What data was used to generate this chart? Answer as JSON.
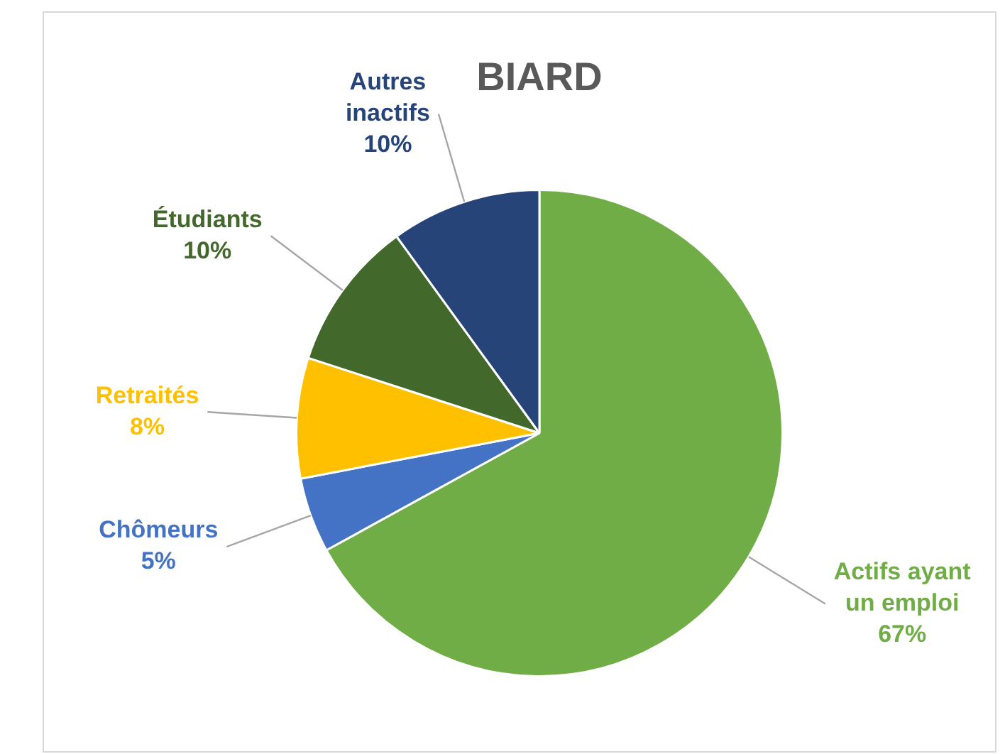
{
  "chart_data": {
    "type": "pie",
    "title": "BIARD",
    "categories": [
      "Actifs ayant un emploi",
      "Chômeurs",
      "Retraités",
      "Étudiants",
      "Autres inactifs"
    ],
    "values": [
      67,
      5,
      8,
      10,
      10
    ],
    "value_labels": [
      "67%",
      "5%",
      "8%",
      "10%",
      "10%"
    ],
    "colors": [
      "#70ad47",
      "#4472c4",
      "#ffc000",
      "#43682b",
      "#264478"
    ],
    "legend": false
  }
}
